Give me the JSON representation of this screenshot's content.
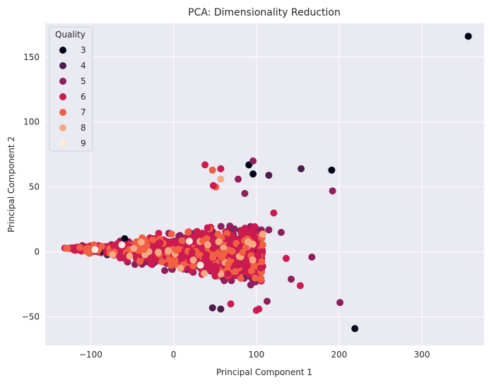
{
  "chart_data": {
    "type": "scatter",
    "title": "PCA: Dimensionality Reduction",
    "xlabel": "Principal Component 1",
    "ylabel": "Principal Component 2",
    "xlim": [
      -155,
      375
    ],
    "ylim": [
      -72,
      176
    ],
    "x_ticks": [
      -100,
      0,
      100,
      200,
      300
    ],
    "x_tick_labels": [
      "−100",
      "0",
      "100",
      "200",
      "300"
    ],
    "y_ticks": [
      -50,
      0,
      50,
      100,
      150
    ],
    "y_tick_labels": [
      "−50",
      "0",
      "50",
      "100",
      "150"
    ],
    "grid": true,
    "background": "#eaeaf2",
    "legend": {
      "title": "Quality",
      "position": "top-left",
      "entries": [
        {
          "label": "3",
          "color": "#03051a"
        },
        {
          "label": "4",
          "color": "#4c1d4b"
        },
        {
          "label": "5",
          "color": "#8f1e5c"
        },
        {
          "label": "6",
          "color": "#cb1b4f"
        },
        {
          "label": "7",
          "color": "#f06043"
        },
        {
          "label": "8",
          "color": "#f6aa82"
        },
        {
          "label": "9",
          "color": "#faebdd"
        }
      ]
    },
    "cluster": {
      "description_points": "dense cloud of points, wedge shaped, apex near (-130, 3) widening to x of about 100 spanning y from -35 to 30",
      "count": 1600,
      "quality_weights": [
        0.005,
        0.035,
        0.42,
        0.43,
        0.09,
        0.017,
        0.003
      ]
    },
    "outliers": [
      {
        "x": 356,
        "y": 166,
        "quality": "3"
      },
      {
        "x": 91,
        "y": 67,
        "quality": "3"
      },
      {
        "x": 96,
        "y": 60,
        "quality": "3"
      },
      {
        "x": 191,
        "y": 63,
        "quality": "3"
      },
      {
        "x": 219,
        "y": -59,
        "quality": "3"
      },
      {
        "x": 96,
        "y": 70,
        "quality": "5"
      },
      {
        "x": 154,
        "y": 64,
        "quality": "4"
      },
      {
        "x": 115,
        "y": 59,
        "quality": "4"
      },
      {
        "x": 192,
        "y": 47,
        "quality": "5"
      },
      {
        "x": 201,
        "y": -39,
        "quality": "5"
      },
      {
        "x": 167,
        "y": -4,
        "quality": "5"
      },
      {
        "x": 142,
        "y": -21,
        "quality": "5"
      },
      {
        "x": 153,
        "y": -26,
        "quality": "6"
      },
      {
        "x": 136,
        "y": -5,
        "quality": "6"
      },
      {
        "x": 121,
        "y": 30,
        "quality": "6"
      },
      {
        "x": 38,
        "y": 67,
        "quality": "6"
      },
      {
        "x": 47,
        "y": 63,
        "quality": "7"
      },
      {
        "x": 57,
        "y": 64,
        "quality": "6"
      },
      {
        "x": 57,
        "y": 56,
        "quality": "8"
      },
      {
        "x": 78,
        "y": 56,
        "quality": "5"
      },
      {
        "x": 86,
        "y": 45,
        "quality": "5"
      },
      {
        "x": 103,
        "y": -44,
        "quality": "6"
      },
      {
        "x": 100,
        "y": -45,
        "quality": "6"
      },
      {
        "x": 57,
        "y": -44,
        "quality": "4"
      },
      {
        "x": 47,
        "y": -43,
        "quality": "4"
      },
      {
        "x": 69,
        "y": -40,
        "quality": "6"
      },
      {
        "x": 113,
        "y": -38,
        "quality": "5"
      },
      {
        "x": 130,
        "y": 15,
        "quality": "5"
      },
      {
        "x": 115,
        "y": 17,
        "quality": "5"
      },
      {
        "x": 51,
        "y": 50,
        "quality": "7"
      },
      {
        "x": 48,
        "y": 51,
        "quality": "6"
      }
    ]
  }
}
